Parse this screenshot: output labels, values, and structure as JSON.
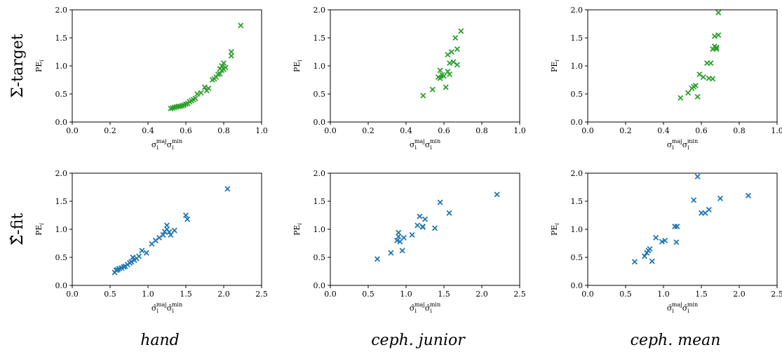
{
  "row_labels": [
    "Σ-target",
    "Σ̂-fit"
  ],
  "column_labels": [
    "hand",
    "ceph. junior",
    "ceph. mean"
  ],
  "colors": {
    "target": "#2ca02c",
    "fit": "#1f77b4"
  },
  "chart_data": [
    {
      "type": "scatter",
      "row": 0,
      "col": 0,
      "marker": "x",
      "color": "#2ca02c",
      "xlabel": "σ_i^maj σ_i^min",
      "ylabel": "PE_i",
      "xlim": [
        0,
        1.0
      ],
      "ylim": [
        0,
        2.0
      ],
      "xticks": [
        "0.0",
        "0.2",
        "0.4",
        "0.6",
        "0.8",
        "1.0"
      ],
      "yticks": [
        "0.0",
        "0.5",
        "1.0",
        "1.5",
        "2.0"
      ],
      "x": [
        0.52,
        0.53,
        0.54,
        0.55,
        0.56,
        0.57,
        0.58,
        0.59,
        0.6,
        0.61,
        0.62,
        0.63,
        0.64,
        0.65,
        0.66,
        0.68,
        0.7,
        0.71,
        0.72,
        0.74,
        0.75,
        0.76,
        0.77,
        0.78,
        0.78,
        0.79,
        0.79,
        0.8,
        0.8,
        0.81,
        0.84,
        0.84,
        0.89
      ],
      "y": [
        0.24,
        0.25,
        0.26,
        0.27,
        0.28,
        0.28,
        0.29,
        0.3,
        0.32,
        0.33,
        0.36,
        0.38,
        0.4,
        0.42,
        0.5,
        0.52,
        0.62,
        0.56,
        0.6,
        0.75,
        0.77,
        0.8,
        0.85,
        0.86,
        0.95,
        0.92,
        1.0,
        0.94,
        1.05,
        0.97,
        1.18,
        1.25,
        1.72
      ]
    },
    {
      "type": "scatter",
      "row": 0,
      "col": 1,
      "marker": "x",
      "color": "#2ca02c",
      "xlabel": "σ_i^maj σ_i^min",
      "ylabel": "PE_i",
      "xlim": [
        0,
        1.0
      ],
      "ylim": [
        0,
        2.0
      ],
      "xticks": [
        "0.0",
        "0.2",
        "0.4",
        "0.6",
        "0.8",
        "1.0"
      ],
      "yticks": [
        "0.0",
        "0.5",
        "1.0",
        "1.5",
        "2.0"
      ],
      "x": [
        0.49,
        0.54,
        0.57,
        0.58,
        0.58,
        0.59,
        0.6,
        0.61,
        0.62,
        0.62,
        0.63,
        0.63,
        0.64,
        0.65,
        0.66,
        0.67,
        0.67,
        0.69
      ],
      "y": [
        0.47,
        0.58,
        0.8,
        0.92,
        0.78,
        0.84,
        0.82,
        0.62,
        0.9,
        1.2,
        0.85,
        1.05,
        1.25,
        1.07,
        1.5,
        1.3,
        1.02,
        1.62
      ]
    },
    {
      "type": "scatter",
      "row": 0,
      "col": 2,
      "marker": "x",
      "color": "#2ca02c",
      "xlabel": "σ_i^maj σ_i^min",
      "ylabel": "PE_i",
      "xlim": [
        0,
        1.0
      ],
      "ylim": [
        0,
        2.0
      ],
      "xticks": [
        "0.0",
        "0.2",
        "0.4",
        "0.6",
        "0.8",
        "1.0"
      ],
      "yticks": [
        "0.0",
        "0.5",
        "1.0",
        "1.5",
        "2.0"
      ],
      "x": [
        0.49,
        0.53,
        0.55,
        0.56,
        0.57,
        0.58,
        0.59,
        0.61,
        0.63,
        0.64,
        0.65,
        0.66,
        0.66,
        0.67,
        0.67,
        0.68,
        0.68,
        0.69,
        0.69
      ],
      "y": [
        0.43,
        0.52,
        0.6,
        0.63,
        0.65,
        0.45,
        0.85,
        0.8,
        1.05,
        0.78,
        1.05,
        0.77,
        1.3,
        1.35,
        1.53,
        1.33,
        1.3,
        1.55,
        1.95
      ]
    },
    {
      "type": "scatter",
      "row": 1,
      "col": 0,
      "marker": "x",
      "color": "#1f77b4",
      "xlabel": "σ̂_i^maj σ̂_i^min",
      "ylabel": "PE_i",
      "xlim": [
        0,
        2.5
      ],
      "ylim": [
        0,
        2.0
      ],
      "xticks": [
        "0.0",
        "0.5",
        "1.0",
        "1.5",
        "2.0",
        "2.5"
      ],
      "yticks": [
        "0.0",
        "0.5",
        "1.0",
        "1.5",
        "2.0"
      ],
      "x": [
        0.56,
        0.58,
        0.6,
        0.62,
        0.65,
        0.68,
        0.7,
        0.73,
        0.76,
        0.78,
        0.8,
        0.82,
        0.85,
        0.88,
        0.92,
        0.98,
        1.05,
        1.1,
        1.15,
        1.2,
        1.22,
        1.25,
        1.25,
        1.28,
        1.3,
        1.35,
        1.5,
        1.52,
        2.05
      ],
      "y": [
        0.23,
        0.27,
        0.28,
        0.3,
        0.31,
        0.33,
        0.34,
        0.37,
        0.4,
        0.42,
        0.5,
        0.45,
        0.48,
        0.52,
        0.62,
        0.58,
        0.74,
        0.8,
        0.85,
        0.9,
        0.96,
        1.0,
        1.07,
        0.95,
        0.9,
        0.98,
        1.25,
        1.18,
        1.72
      ]
    },
    {
      "type": "scatter",
      "row": 1,
      "col": 1,
      "marker": "x",
      "color": "#1f77b4",
      "xlabel": "σ̂_i^maj σ̂_i^min",
      "ylabel": "PE_i",
      "xlim": [
        0,
        2.5
      ],
      "ylim": [
        0,
        2.0
      ],
      "xticks": [
        "0.0",
        "0.5",
        "1.0",
        "1.5",
        "2.0",
        "2.5"
      ],
      "yticks": [
        "0.0",
        "0.5",
        "1.0",
        "1.5",
        "2.0"
      ],
      "x": [
        0.62,
        0.8,
        0.88,
        0.9,
        0.9,
        0.92,
        0.95,
        0.97,
        1.08,
        1.15,
        1.18,
        1.22,
        1.22,
        1.25,
        1.38,
        1.45,
        1.57,
        2.2
      ],
      "y": [
        0.47,
        0.58,
        0.8,
        0.87,
        0.94,
        0.78,
        0.62,
        0.85,
        0.9,
        1.07,
        1.23,
        1.05,
        1.04,
        1.18,
        1.02,
        1.48,
        1.29,
        1.62
      ]
    },
    {
      "type": "scatter",
      "row": 1,
      "col": 2,
      "marker": "x",
      "color": "#1f77b4",
      "xlabel": "σ̂_i^maj σ̂_i^min",
      "ylabel": "PE_i",
      "xlim": [
        0,
        2.5
      ],
      "ylim": [
        0,
        2.0
      ],
      "xticks": [
        "0.0",
        "0.5",
        "1.0",
        "1.5",
        "2.0",
        "2.5"
      ],
      "yticks": [
        "0.0",
        "0.5",
        "1.0",
        "1.5",
        "2.0"
      ],
      "x": [
        0.62,
        0.75,
        0.78,
        0.8,
        0.82,
        0.85,
        0.9,
        0.98,
        1.02,
        1.15,
        1.18,
        1.17,
        1.4,
        1.45,
        1.5,
        1.55,
        1.6,
        1.75,
        2.12
      ],
      "y": [
        0.42,
        0.52,
        0.58,
        0.62,
        0.65,
        0.43,
        0.85,
        0.78,
        0.8,
        1.05,
        1.05,
        0.77,
        1.52,
        1.94,
        1.29,
        1.29,
        1.35,
        1.55,
        1.6
      ]
    }
  ]
}
